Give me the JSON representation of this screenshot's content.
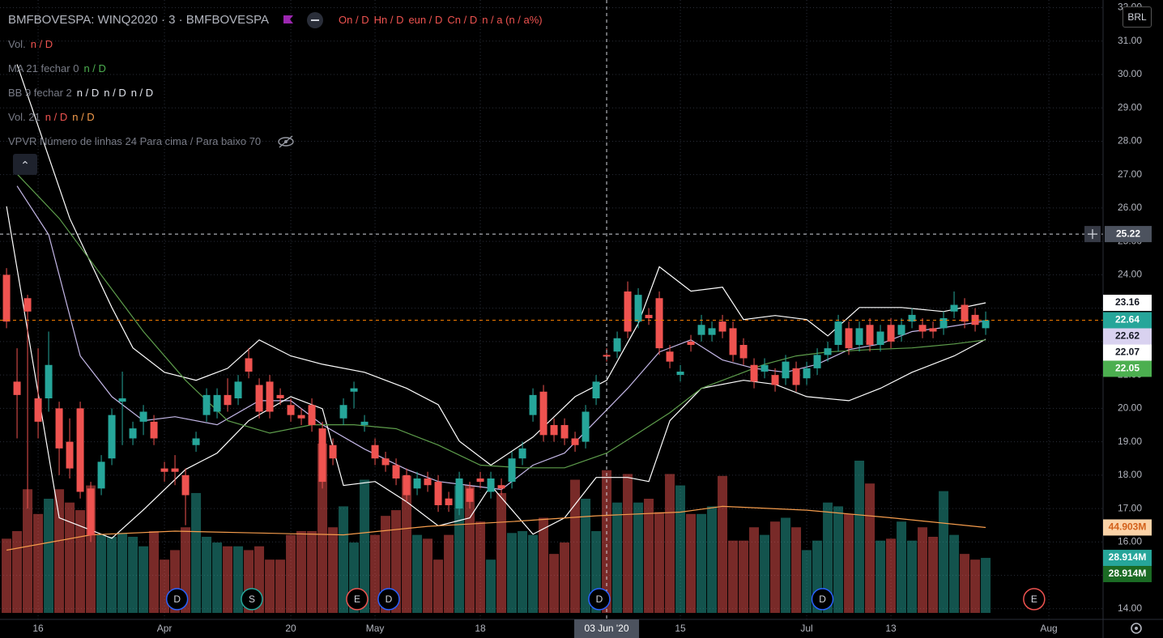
{
  "chart_data": {
    "type": "candlestick",
    "symbol": "BMFBOVESPA: WINQ2020 · 3 · BMFBOVESPA",
    "ohlc_legend": [
      "On / D",
      "Hn / D",
      "eun / D",
      "Cn / D",
      "n / a (n / a%)"
    ],
    "indicators": [
      {
        "name": "Vol.",
        "values": [
          "n / D"
        ]
      },
      {
        "name": "MA 21 fechar 0",
        "values": [
          "n / D"
        ]
      },
      {
        "name": "BB 9 fechar 2",
        "values": [
          "n / D",
          "n / D",
          "n / D"
        ]
      },
      {
        "name": "Vol. 21",
        "values": [
          "n / D",
          "n / D"
        ]
      },
      {
        "name": "VPVR Número de linhas 24 Para cima / Para baixo 70"
      }
    ],
    "currency": "BRL",
    "up_color": "#26a69a",
    "down_color": "#ef5350",
    "open": [
      24.0,
      20.8,
      23.3,
      20.3,
      20.3,
      20.0,
      19.0,
      20.0,
      17.6,
      17.6,
      18.5,
      20.2,
      19.1,
      19.6,
      19.6,
      18.2,
      18.2,
      18.0,
      18.9,
      19.8,
      19.9,
      20.4,
      20.3,
      21.5,
      20.7,
      20.8,
      20.4,
      20.1,
      19.8,
      20.1,
      19.4,
      18.9,
      19.7,
      20.5,
      19.5,
      18.9,
      18.5,
      18.3,
      18.0,
      17.6,
      17.9,
      17.8,
      17.3,
      17.0,
      17.6,
      17.9,
      17.5,
      17.7,
      17.8,
      18.5,
      19.8,
      20.5,
      19.5,
      19.5,
      19.1,
      19.0,
      20.3,
      21.6,
      21.7,
      23.5,
      22.6,
      22.8,
      23.3,
      21.7,
      21.0,
      22.0,
      22.2,
      22.2,
      22.6,
      22.4,
      21.9,
      21.3,
      21.1,
      21.0,
      20.9,
      21.2,
      20.9,
      21.2,
      21.6,
      21.9,
      22.4,
      21.9,
      22.5,
      21.9,
      22.5,
      22.2,
      22.6,
      22.5,
      22.4,
      22.4,
      22.9,
      23.1,
      22.8,
      22.4
    ],
    "high": [
      24.2,
      21.8,
      23.4,
      21.8,
      22.3,
      20.2,
      19.7,
      20.2,
      17.8,
      18.6,
      20.0,
      21.1,
      19.6,
      20.1,
      19.8,
      18.4,
      18.6,
      18.2,
      19.3,
      20.6,
      20.6,
      20.9,
      21.0,
      21.8,
      20.9,
      21.0,
      20.6,
      20.3,
      20.0,
      20.3,
      19.6,
      19.1,
      20.3,
      20.8,
      19.8,
      19.1,
      18.7,
      18.5,
      18.2,
      18.1,
      18.1,
      18.0,
      17.5,
      18.1,
      17.8,
      18.1,
      18.1,
      17.9,
      18.7,
      19.0,
      20.6,
      20.7,
      19.7,
      19.7,
      19.3,
      20.1,
      21.0,
      21.8,
      22.3,
      23.8,
      23.6,
      23.0,
      23.5,
      21.9,
      21.3,
      22.2,
      22.8,
      22.6,
      22.8,
      22.6,
      22.1,
      21.5,
      21.5,
      21.2,
      21.6,
      21.4,
      21.4,
      21.8,
      22.0,
      22.8,
      22.6,
      22.6,
      22.7,
      22.5,
      22.7,
      22.7,
      23.0,
      22.7,
      22.6,
      22.9,
      23.5,
      23.3,
      23.0,
      22.9
    ],
    "low": [
      22.4,
      19.1,
      17.0,
      19.1,
      19.9,
      18.0,
      17.9,
      17.3,
      16.0,
      17.4,
      18.3,
      18.9,
      18.9,
      19.2,
      18.9,
      17.8,
      17.7,
      16.5,
      18.7,
      19.6,
      19.7,
      19.9,
      20.1,
      20.9,
      19.7,
      19.7,
      20.1,
      19.6,
      19.5,
      19.3,
      17.6,
      18.3,
      19.5,
      20.0,
      19.3,
      18.3,
      18.1,
      17.7,
      17.2,
      17.4,
      17.5,
      16.9,
      16.9,
      16.8,
      17.0,
      17.6,
      17.3,
      17.4,
      17.6,
      18.3,
      19.6,
      19.0,
      19.0,
      18.9,
      18.7,
      18.8,
      20.1,
      21.4,
      21.5,
      22.1,
      22.4,
      22.5,
      21.6,
      21.2,
      20.8,
      21.7,
      22.0,
      22.0,
      22.1,
      21.4,
      21.3,
      20.6,
      20.9,
      20.5,
      20.7,
      20.5,
      20.7,
      21.0,
      21.4,
      21.7,
      21.6,
      21.7,
      21.7,
      21.7,
      21.8,
      22.0,
      22.4,
      22.1,
      22.1,
      22.2,
      22.7,
      22.4,
      22.3,
      22.2
    ],
    "close": [
      22.6,
      20.4,
      22.9,
      19.6,
      21.3,
      18.8,
      18.2,
      17.5,
      16.2,
      18.4,
      19.8,
      20.3,
      19.4,
      19.9,
      19.1,
      18.1,
      18.1,
      17.4,
      19.1,
      20.4,
      20.4,
      20.1,
      20.8,
      21.1,
      19.9,
      19.9,
      20.3,
      19.8,
      19.7,
      19.5,
      17.8,
      18.5,
      20.1,
      20.6,
      19.6,
      18.5,
      18.3,
      17.9,
      17.4,
      17.9,
      17.7,
      17.1,
      17.1,
      17.9,
      17.2,
      17.8,
      17.9,
      17.6,
      18.5,
      18.8,
      20.4,
      19.2,
      19.2,
      19.1,
      18.9,
      19.9,
      20.8,
      21.55,
      22.1,
      22.3,
      23.4,
      22.7,
      21.8,
      21.4,
      21.1,
      21.9,
      22.5,
      22.4,
      22.3,
      21.6,
      21.5,
      20.8,
      21.3,
      20.7,
      21.4,
      20.7,
      21.2,
      21.6,
      21.8,
      22.6,
      21.8,
      22.4,
      21.9,
      22.3,
      22.0,
      22.5,
      22.8,
      22.3,
      22.3,
      22.7,
      23.1,
      22.6,
      22.5,
      22.64
    ],
    "volume": [
      39,
      43,
      65,
      52,
      60,
      65,
      58,
      54,
      67,
      41,
      40,
      42,
      40,
      35,
      43,
      28,
      33,
      45,
      63,
      40,
      37,
      35,
      35,
      33,
      35,
      28,
      28,
      41,
      43,
      43,
      89,
      45,
      56,
      37,
      70,
      41,
      51,
      54,
      72,
      41,
      39,
      28,
      41,
      67,
      67,
      48,
      28,
      63,
      42,
      43,
      41,
      50,
      31,
      37,
      70,
      60,
      43,
      75,
      58,
      73,
      58,
      60,
      53,
      73,
      67,
      52,
      52,
      56,
      72,
      38,
      38,
      45,
      41,
      48,
      50,
      45,
      33,
      38,
      58,
      56,
      52,
      80,
      68,
      38,
      39,
      48,
      38,
      45,
      40,
      64,
      41,
      31,
      28,
      28.914
    ],
    "ylim": [
      13.68,
      32.23
    ],
    "yticks": [
      {
        "value": 14,
        "label": "14.00"
      },
      {
        "value": 15,
        "label": "15.00"
      },
      {
        "value": 16,
        "label": "16.00"
      },
      {
        "value": 17,
        "label": "17.00"
      },
      {
        "value": 18,
        "label": "18.00"
      },
      {
        "value": 19,
        "label": "19.00"
      },
      {
        "value": 20,
        "label": "20.00"
      },
      {
        "value": 21,
        "label": "21.00"
      },
      {
        "value": 22,
        "label": "22.00"
      },
      {
        "value": 23,
        "label": "23.00"
      },
      {
        "value": 24,
        "label": "24.00"
      },
      {
        "value": 25,
        "label": "25.00"
      },
      {
        "value": 26,
        "label": "26.00"
      },
      {
        "value": 27,
        "label": "27.00"
      },
      {
        "value": 28,
        "label": "28.00"
      },
      {
        "value": 29,
        "label": "29.00"
      },
      {
        "value": 30,
        "label": "30.00"
      },
      {
        "value": 31,
        "label": "31.00"
      },
      {
        "value": 32,
        "label": "32.00"
      }
    ],
    "xlim": [
      -0.62,
      104.15
    ],
    "xticks": [
      {
        "value": 3,
        "label": "16"
      },
      {
        "value": 15,
        "label": "Apr"
      },
      {
        "value": 27,
        "label": "20"
      },
      {
        "value": 35,
        "label": "May"
      },
      {
        "value": 45,
        "label": "18"
      },
      {
        "value": 64,
        "label": "15"
      },
      {
        "value": 76,
        "label": "Jul"
      },
      {
        "value": 84,
        "label": "13"
      },
      {
        "value": 99,
        "label": "Aug"
      }
    ],
    "vlim": [
      0,
      120
    ],
    "lines": [
      {
        "name": "BB upper",
        "color": "#ffffff",
        "pane": "price",
        "x": [
          1,
          6,
          10,
          12,
          15,
          18,
          21,
          24,
          27,
          30,
          34,
          38,
          41,
          43,
          46,
          50,
          54,
          57,
          60,
          62,
          65,
          68,
          70,
          73,
          76,
          78,
          81,
          85,
          89,
          93
        ],
        "values": [
          30.3,
          25.69,
          23.02,
          21.81,
          21.08,
          20.84,
          21.2,
          22.05,
          21.57,
          21.32,
          21.08,
          20.6,
          20.11,
          19.02,
          18.3,
          19.14,
          20.35,
          20.84,
          22.54,
          24.24,
          23.51,
          23.63,
          22.66,
          22.78,
          22.66,
          22.17,
          23.02,
          23.02,
          22.9,
          23.16
        ]
      },
      {
        "name": "BB basis",
        "color": "#c5b8e8",
        "pane": "price",
        "x": [
          1,
          4,
          7,
          10,
          13,
          16,
          20,
          24,
          27,
          30,
          34,
          38,
          41,
          44,
          47,
          50,
          53,
          56,
          59,
          62,
          65,
          68,
          71,
          74,
          77,
          80,
          83,
          86,
          89,
          93
        ],
        "values": [
          26.66,
          25.2,
          21.57,
          20.35,
          19.63,
          19.75,
          19.51,
          20.23,
          20.23,
          19.51,
          18.78,
          18.17,
          17.81,
          17.69,
          17.57,
          18.3,
          18.66,
          19.63,
          20.6,
          21.69,
          22.05,
          21.45,
          21.2,
          21.08,
          21.32,
          21.76,
          21.93,
          22.3,
          22.42,
          22.62
        ]
      },
      {
        "name": "BB lower",
        "color": "#ffffff",
        "pane": "price",
        "x": [
          0,
          5,
          10,
          13,
          17,
          20,
          23,
          27,
          30,
          32,
          35,
          38,
          41,
          44,
          46,
          50,
          53,
          56,
          59,
          61,
          63,
          66,
          70,
          73,
          76,
          80,
          83,
          86,
          90,
          93
        ],
        "values": [
          26.05,
          16.72,
          16.11,
          16.96,
          18.17,
          18.66,
          19.63,
          20.35,
          19.99,
          17.69,
          17.81,
          17.2,
          16.48,
          16.72,
          17.69,
          16.23,
          16.72,
          17.93,
          17.93,
          17.81,
          19.63,
          20.6,
          20.84,
          20.72,
          20.35,
          20.23,
          20.6,
          21.08,
          21.57,
          22.07
        ]
      },
      {
        "name": "MA 21",
        "color": "#5e9e4c",
        "pane": "price",
        "x": [
          1,
          5,
          9,
          13,
          17,
          21,
          25,
          29,
          33,
          37,
          41,
          45,
          49,
          53,
          57,
          60,
          63,
          66,
          69,
          72,
          75,
          78,
          82,
          86,
          90,
          93
        ],
        "values": [
          27.02,
          25.69,
          23.99,
          22.3,
          20.84,
          19.63,
          19.26,
          19.51,
          19.51,
          19.39,
          18.9,
          18.3,
          18.22,
          18.22,
          18.66,
          19.26,
          19.87,
          20.6,
          20.96,
          21.32,
          21.57,
          21.69,
          21.76,
          21.81,
          21.93,
          22.05
        ]
      },
      {
        "name": "Vol MA 21",
        "color": "#f59c4c",
        "pane": "volume",
        "x": [
          0,
          8,
          16,
          24,
          32,
          40,
          48,
          56,
          64,
          68,
          76,
          84,
          93
        ],
        "values": [
          33,
          41,
          43,
          42,
          41,
          45.5,
          48,
          51,
          53,
          56,
          54,
          50,
          44.903
        ]
      }
    ],
    "price_tags": [
      {
        "value": 23.16,
        "label": "23.16",
        "bg": "#ffffff",
        "fg": "#131722"
      },
      {
        "value": 22.64,
        "label": "22.64",
        "bg": "#26a69a",
        "fg": "#ffffff"
      },
      {
        "value": 22.62,
        "label": "22.62",
        "bg": "#d9d2f0",
        "fg": "#131722"
      },
      {
        "value": 22.07,
        "label": "22.07",
        "bg": "#ffffff",
        "fg": "#131722"
      },
      {
        "value": 22.05,
        "label": "22.05",
        "bg": "#4caf50",
        "fg": "#ffffff"
      }
    ],
    "volume_tags": [
      {
        "value": 44.903,
        "label": "44.903M",
        "bg": "#fbd3a8",
        "fg": "#d3611a"
      },
      {
        "value": 28.914,
        "label": "28.914M",
        "bg": "#26a69a",
        "fg": "#ffffff"
      },
      {
        "value": 28.914,
        "label": "28.914M",
        "bg": "#1b6b24",
        "fg": "#ffffff"
      }
    ],
    "crosshair": {
      "x": 57,
      "x_label": "03 Jun '20",
      "price": 25.22,
      "price_label": "25.22"
    },
    "events": [
      {
        "x": 16.2,
        "label": "D",
        "color": "#2962ff"
      },
      {
        "x": 23.3,
        "label": "S",
        "color": "#26a69a"
      },
      {
        "x": 33.3,
        "label": "E",
        "color": "#ef5350"
      },
      {
        "x": 36.3,
        "label": "D",
        "color": "#2962ff"
      },
      {
        "x": 56.3,
        "label": "D",
        "color": "#2962ff"
      },
      {
        "x": 77.5,
        "label": "D",
        "color": "#2962ff"
      },
      {
        "x": 97.6,
        "label": "E",
        "color": "#ef5350"
      }
    ]
  }
}
